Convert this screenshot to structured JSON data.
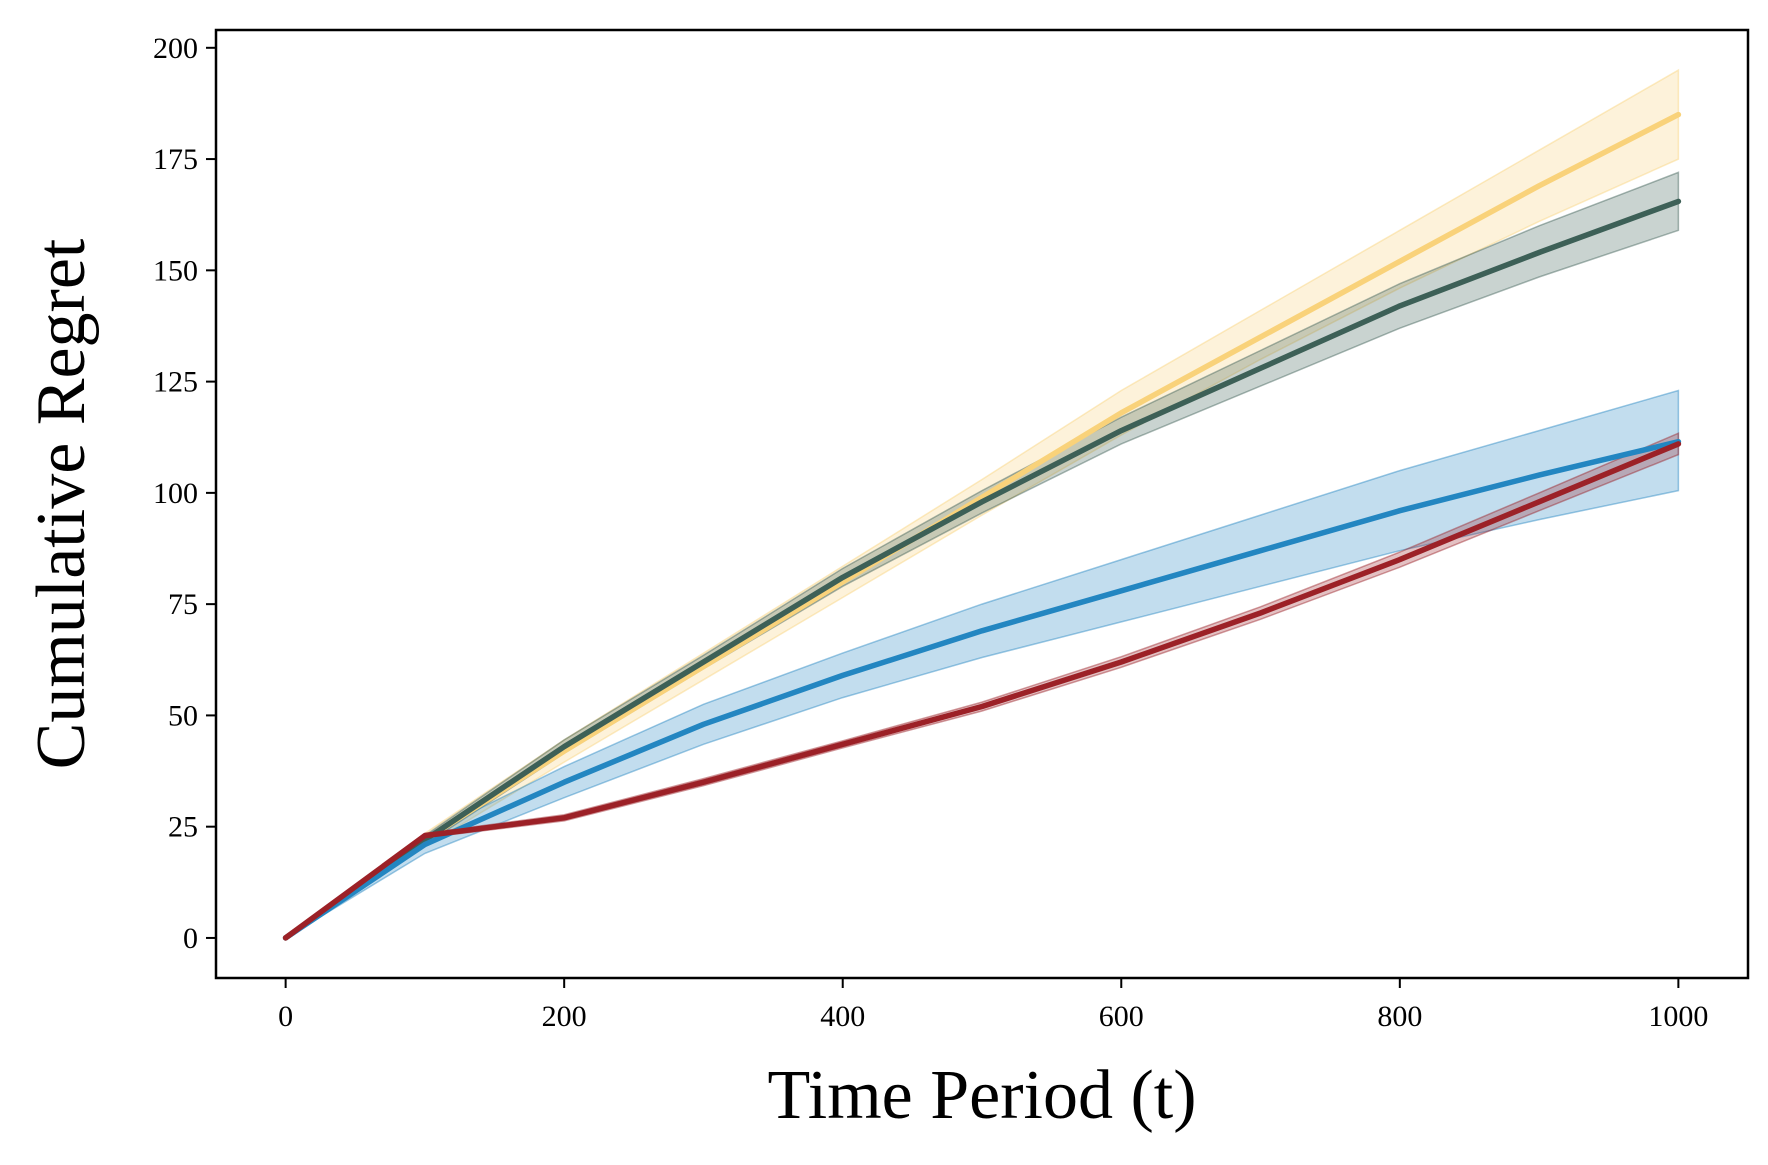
{
  "chart_data": {
    "type": "line",
    "title": "",
    "xlabel": "Time Period (t)",
    "ylabel": "Cumulative Regret",
    "xlim": [
      -50,
      1050
    ],
    "ylim": [
      -9,
      204
    ],
    "xticks": [
      0,
      200,
      400,
      600,
      800,
      1000
    ],
    "yticks": [
      0,
      25,
      50,
      75,
      100,
      125,
      150,
      175,
      200
    ],
    "grid": false,
    "legend": "none",
    "x": [
      0,
      100,
      200,
      300,
      400,
      500,
      600,
      700,
      800,
      900,
      1000
    ],
    "series": [
      {
        "name": "yellow",
        "color": "#F9D27A",
        "values": [
          0,
          22,
          42,
          61,
          80,
          99,
          118,
          135,
          152,
          169,
          185
        ],
        "lower": [
          0,
          20.5,
          39.5,
          58,
          76.5,
          95,
          113,
          130,
          146,
          161,
          175
        ],
        "upper": [
          0,
          23.5,
          44.5,
          64,
          83.5,
          103,
          123,
          141,
          159,
          177,
          195
        ]
      },
      {
        "name": "dark-green",
        "color": "#3D6057",
        "values": [
          0,
          22,
          43,
          62,
          81,
          98,
          114,
          128,
          142,
          154,
          165.5
        ],
        "lower": [
          0,
          21,
          41.5,
          60.5,
          79,
          95.5,
          111,
          124,
          137,
          148.5,
          159
        ],
        "upper": [
          0,
          23,
          44.5,
          63.5,
          83,
          100.5,
          117,
          132,
          147,
          160,
          172
        ]
      },
      {
        "name": "blue",
        "color": "#2386C1",
        "values": [
          0,
          21,
          35,
          48,
          59,
          69,
          78,
          87,
          96,
          104,
          111.5
        ],
        "lower": [
          0,
          19,
          31.5,
          43.5,
          54,
          63,
          71,
          79,
          87,
          94,
          100.5
        ],
        "upper": [
          0,
          23,
          38.5,
          52.5,
          64,
          75,
          85,
          95,
          105,
          114,
          123
        ]
      },
      {
        "name": "red",
        "color": "#9C2127",
        "values": [
          0,
          23,
          27,
          35,
          43.5,
          52,
          62,
          73,
          85,
          98,
          111
        ],
        "lower": [
          0,
          22.5,
          26.3,
          34.2,
          42.7,
          51,
          60.8,
          71.6,
          83.3,
          96,
          108.6
        ],
        "upper": [
          0,
          23.5,
          27.7,
          35.8,
          44.3,
          53,
          63.2,
          74.4,
          86.7,
          100,
          113.4
        ]
      }
    ]
  }
}
